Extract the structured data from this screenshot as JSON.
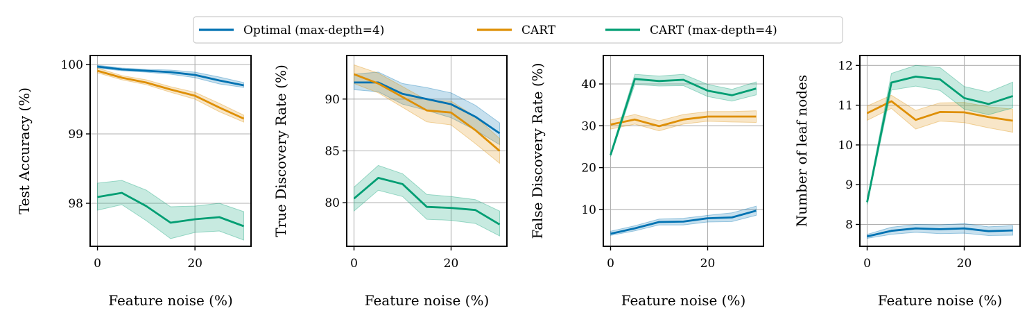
{
  "colors": {
    "optimal": "#0072b2",
    "cart": "#de8f05",
    "cart_md4": "#029e73"
  },
  "legend": {
    "items": [
      {
        "label": "Optimal (max-depth=4)",
        "key": "optimal"
      },
      {
        "label": "CART",
        "key": "cart"
      },
      {
        "label": "CART (max-depth=4)",
        "key": "cart_md4"
      }
    ]
  },
  "chart_data": [
    {
      "type": "line",
      "title": "",
      "xlabel": "Feature noise (%)",
      "ylabel": "Test Accuracy (%)",
      "xlim": [
        -1.5,
        31.5
      ],
      "ylim": [
        97.38,
        100.13
      ],
      "xticks": [
        0,
        20
      ],
      "yticks": [
        98,
        99,
        100
      ],
      "x": [
        0,
        5,
        10,
        15,
        20,
        25,
        30
      ],
      "series": [
        {
          "key": "optimal",
          "values": [
            99.97,
            99.93,
            99.91,
            99.89,
            99.85,
            99.77,
            99.7
          ],
          "lower": [
            99.95,
            99.91,
            99.89,
            99.86,
            99.81,
            99.72,
            99.67
          ],
          "upper": [
            99.99,
            99.95,
            99.93,
            99.92,
            99.89,
            99.82,
            99.74
          ]
        },
        {
          "key": "cart",
          "values": [
            99.91,
            99.81,
            99.74,
            99.64,
            99.55,
            99.38,
            99.22
          ],
          "lower": [
            99.88,
            99.78,
            99.71,
            99.6,
            99.5,
            99.32,
            99.17
          ],
          "upper": [
            99.95,
            99.84,
            99.78,
            99.68,
            99.6,
            99.44,
            99.27
          ]
        },
        {
          "key": "cart_md4",
          "values": [
            98.09,
            98.15,
            97.96,
            97.72,
            97.77,
            97.8,
            97.67
          ],
          "lower": [
            97.9,
            97.98,
            97.75,
            97.49,
            97.58,
            97.6,
            97.47
          ],
          "upper": [
            98.29,
            98.33,
            98.19,
            97.95,
            97.96,
            98.0,
            97.88
          ]
        }
      ]
    },
    {
      "type": "line",
      "title": "",
      "xlabel": "Feature noise (%)",
      "ylabel": "True Discovery Rate (%)",
      "xlim": [
        -1.5,
        31.5
      ],
      "ylim": [
        75.8,
        94.2
      ],
      "xticks": [
        0,
        20
      ],
      "yticks": [
        80,
        85,
        90
      ],
      "x": [
        0,
        5,
        10,
        15,
        20,
        25,
        30
      ],
      "series": [
        {
          "key": "optimal",
          "values": [
            91.6,
            91.6,
            90.5,
            90.0,
            89.5,
            88.3,
            86.7
          ],
          "lower": [
            90.9,
            90.7,
            89.5,
            88.9,
            88.2,
            87.0,
            85.6
          ],
          "upper": [
            92.4,
            92.6,
            91.5,
            91.1,
            90.6,
            89.4,
            87.7
          ]
        },
        {
          "key": "cart",
          "values": [
            92.4,
            91.5,
            90.2,
            88.9,
            88.7,
            87.0,
            85.0
          ],
          "lower": [
            91.5,
            90.6,
            89.2,
            87.8,
            87.5,
            85.7,
            83.8
          ],
          "upper": [
            93.3,
            92.5,
            91.2,
            89.9,
            89.8,
            88.3,
            86.2
          ]
        },
        {
          "key": "cart_md4",
          "values": [
            80.4,
            82.4,
            81.8,
            79.6,
            79.5,
            79.3,
            77.9
          ],
          "lower": [
            79.2,
            81.2,
            80.6,
            78.4,
            78.3,
            78.0,
            76.8
          ],
          "upper": [
            81.5,
            83.6,
            82.8,
            80.8,
            80.6,
            80.3,
            79.2
          ]
        }
      ]
    },
    {
      "type": "line",
      "title": "",
      "xlabel": "Feature noise (%)",
      "ylabel": "False Discovery Rate (%)",
      "xlim": [
        -1.5,
        31.5
      ],
      "ylim": [
        1.2,
        46.8
      ],
      "xticks": [
        0,
        20
      ],
      "yticks": [
        10,
        20,
        30,
        40
      ],
      "x": [
        0,
        5,
        10,
        15,
        20,
        25,
        30
      ],
      "series": [
        {
          "key": "optimal",
          "values": [
            4.2,
            5.5,
            7.0,
            7.1,
            7.9,
            8.1,
            9.7
          ],
          "lower": [
            3.8,
            4.9,
            6.3,
            6.3,
            7.0,
            7.1,
            8.6
          ],
          "upper": [
            4.8,
            6.1,
            7.7,
            7.9,
            8.6,
            9.2,
            10.8
          ]
        },
        {
          "key": "cart",
          "values": [
            30.3,
            31.5,
            29.9,
            31.5,
            32.2,
            32.2,
            32.2
          ],
          "lower": [
            29.2,
            30.4,
            28.8,
            30.4,
            31.1,
            30.9,
            30.8
          ],
          "upper": [
            31.4,
            32.7,
            31.2,
            32.7,
            33.4,
            33.4,
            33.6
          ]
        },
        {
          "key": "cart_md4",
          "values": [
            23.0,
            41.2,
            40.7,
            41.0,
            38.4,
            37.3,
            38.9
          ],
          "lower": [
            22.6,
            39.9,
            39.5,
            39.6,
            37.0,
            35.9,
            37.4
          ],
          "upper": [
            23.6,
            42.3,
            41.9,
            42.3,
            39.9,
            38.7,
            40.5
          ]
        }
      ]
    },
    {
      "type": "line",
      "title": "",
      "xlabel": "Feature noise (%)",
      "ylabel": "Number of leaf nodes",
      "xlim": [
        -1.5,
        31.5
      ],
      "ylim": [
        7.45,
        12.25
      ],
      "xticks": [
        0,
        20
      ],
      "yticks": [
        8,
        9,
        10,
        11,
        12
      ],
      "x": [
        0,
        5,
        10,
        15,
        20,
        25,
        30
      ],
      "series": [
        {
          "key": "optimal",
          "values": [
            7.7,
            7.84,
            7.9,
            7.88,
            7.9,
            7.83,
            7.85
          ],
          "lower": [
            7.65,
            7.75,
            7.8,
            7.77,
            7.78,
            7.72,
            7.73
          ],
          "upper": [
            7.75,
            7.93,
            8.0,
            7.99,
            8.02,
            7.94,
            7.97
          ]
        },
        {
          "key": "cart",
          "values": [
            10.8,
            11.1,
            10.63,
            10.83,
            10.82,
            10.7,
            10.61
          ],
          "lower": [
            10.62,
            10.92,
            10.4,
            10.6,
            10.56,
            10.43,
            10.32
          ],
          "upper": [
            10.98,
            11.25,
            10.87,
            11.06,
            11.07,
            10.96,
            10.9
          ]
        },
        {
          "key": "cart_md4",
          "values": [
            8.56,
            11.57,
            11.72,
            11.65,
            11.18,
            11.03,
            11.23
          ],
          "lower": [
            8.5,
            11.38,
            11.48,
            11.37,
            10.9,
            10.76,
            10.93
          ],
          "upper": [
            8.62,
            11.8,
            12.0,
            11.95,
            11.47,
            11.33,
            11.58
          ]
        }
      ]
    }
  ]
}
